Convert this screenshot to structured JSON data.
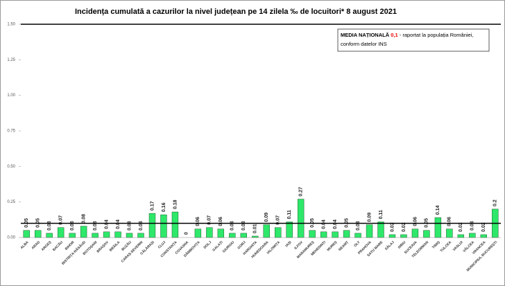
{
  "chart_data": {
    "type": "bar",
    "title": "Incidența cumulată a cazurilor la nivel județean pe 14 zilela ‰ de locuitori*  8 august 2021",
    "legend_box": {
      "label": "MEDIA NAȚIONALĂ",
      "value": "0,1",
      "text1": " - raportat la populația României,",
      "text2": "conform datelor INS"
    },
    "average": 0.1,
    "categories": [
      "ALBA",
      "ARAD",
      "ARGEȘ",
      "BACĂU",
      "BIHOR",
      "BISTRIȚA-NĂSĂUD",
      "BOTOȘANI",
      "BRAȘOV",
      "BRĂILA",
      "BUZĂU",
      "CARAȘ-SEVERIN",
      "CĂLĂRAȘI",
      "CLUJ",
      "CONSTANȚA",
      "COVASNA",
      "DÂMBOVIȚA",
      "DOLJ",
      "GALAȚI",
      "GIURGIU",
      "GORJ",
      "HARGHITA",
      "HUNEDOARA",
      "IALOMIȚA",
      "IAȘI",
      "ILFOV",
      "MARAMUREȘ",
      "MEHEDINȚI",
      "MUREȘ",
      "NEAMȚ",
      "OLT",
      "PRAHOVA",
      "SATU MARE",
      "SĂLAJ",
      "SIBIU",
      "SUCEAVA",
      "TELEORMAN",
      "TIMIȘ",
      "TULCEA",
      "VASLUI",
      "VÂLCEA",
      "VRANCEA",
      "MUNICIPIUL BUCUREȘTI"
    ],
    "values": [
      0.05,
      0.05,
      0.03,
      0.07,
      0.03,
      0.08,
      0.03,
      0.04,
      0.04,
      0.03,
      0.03,
      0.17,
      0.16,
      0.18,
      0,
      0.06,
      0.07,
      0.06,
      0.03,
      0.03,
      0.01,
      0.09,
      0.07,
      0.11,
      0.27,
      0.05,
      0.04,
      0.04,
      0.05,
      0.03,
      0.09,
      0.11,
      0.02,
      0.02,
      0.06,
      0.05,
      0.14,
      0.06,
      0.02,
      0.03,
      0.02,
      0.2
    ],
    "color": "#2ee86a",
    "ylim": [
      0,
      1.5
    ],
    "yticks": [
      {
        "value": 0,
        "label": "0.00"
      },
      {
        "value": 0.25,
        "label": "0.25"
      },
      {
        "value": 0.5,
        "label": "0.50"
      },
      {
        "value": 0.75,
        "label": "0.75"
      },
      {
        "value": 1,
        "label": "1.00"
      },
      {
        "value": 1.25,
        "label": "1.25"
      },
      {
        "value": 1.5,
        "label": "1.50"
      }
    ]
  }
}
